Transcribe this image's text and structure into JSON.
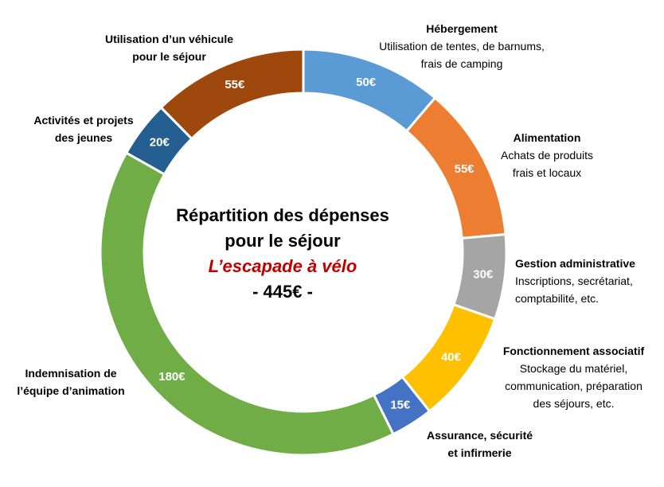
{
  "chart_data": {
    "type": "pie",
    "title": "Répartition des dépenses",
    "title_line2": "pour le séjour",
    "subtitle": "L’escapade à vélo",
    "total": "- 445€ -",
    "slices": [
      {
        "label_lines": [
          "Hébergement"
        ],
        "desc_lines": [
          "Utilisation de tentes, de barnums,",
          "frais de camping"
        ],
        "value": 50,
        "value_label": "50€",
        "color": "#5b9bd5"
      },
      {
        "label_lines": [
          "Alimentation"
        ],
        "desc_lines": [
          "Achats de produits",
          "frais et locaux"
        ],
        "value": 55,
        "value_label": "55€",
        "color": "#ed7d31"
      },
      {
        "label_lines": [
          "Gestion administrative"
        ],
        "desc_lines": [
          "Inscriptions, secrétariat,",
          "comptabilité, etc."
        ],
        "value": 30,
        "value_label": "30€",
        "color": "#a5a5a5"
      },
      {
        "label_lines": [
          "Fonctionnement associatif"
        ],
        "desc_lines": [
          "Stockage du matériel,",
          "communication, préparation",
          "des séjours, etc."
        ],
        "value": 40,
        "value_label": "40€",
        "color": "#ffc000"
      },
      {
        "label_lines": [
          "Assurance, sécurité",
          "et infirmerie"
        ],
        "desc_lines": [],
        "value": 15,
        "value_label": "15€",
        "color": "#4472c4"
      },
      {
        "label_lines": [
          "Indemnisation de",
          "l’équipe d’animation"
        ],
        "desc_lines": [],
        "value": 180,
        "value_label": "180€",
        "color": "#70ad47"
      },
      {
        "label_lines": [
          "Activités et projets",
          "des jeunes"
        ],
        "desc_lines": [],
        "value": 20,
        "value_label": "20€",
        "color": "#255e91"
      },
      {
        "label_lines": [
          "Utilisation d’un véhicule",
          "pour le séjour"
        ],
        "desc_lines": [],
        "value": 55,
        "value_label": "55€",
        "color": "#9e480e"
      }
    ]
  }
}
